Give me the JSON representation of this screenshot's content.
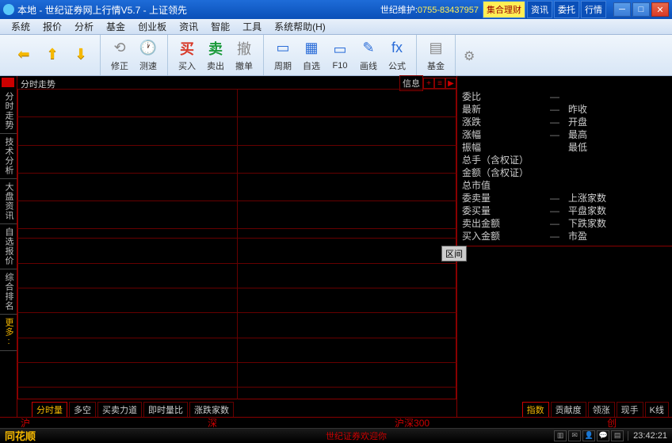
{
  "title": "本地 - 世纪证券网上行情V5.7 - 上证领先",
  "service": {
    "label": "世纪维护:",
    "phone": "0755-83437957"
  },
  "titletabs": [
    "集合理财",
    "资讯",
    "委托",
    "行情"
  ],
  "menu": [
    "系统",
    "报价",
    "分析",
    "基金",
    "创业板",
    "资讯",
    "智能",
    "工具",
    "系统帮助(H)"
  ],
  "toolbar": {
    "g1": [
      {
        "k": "back",
        "lbl": "",
        "glyph": "⬅",
        "cls": "arrow-yellow"
      },
      {
        "k": "up",
        "lbl": "",
        "glyph": "⬆",
        "cls": "arrow-yellow"
      },
      {
        "k": "down",
        "lbl": "",
        "glyph": "⬇",
        "cls": "arrow-yellow"
      }
    ],
    "g2": [
      {
        "k": "correct",
        "lbl": "修正",
        "glyph": "⟲",
        "cls": "icon-gray"
      },
      {
        "k": "speed",
        "lbl": "测速",
        "glyph": "🕐",
        "cls": "icon-gray"
      }
    ],
    "g3": [
      {
        "k": "buy",
        "lbl": "买入",
        "glyph": "买",
        "cls": "icon-red"
      },
      {
        "k": "sell",
        "lbl": "卖出",
        "glyph": "卖",
        "cls": "icon-green"
      },
      {
        "k": "cancel",
        "lbl": "撤单",
        "glyph": "撤",
        "cls": "icon-gray"
      }
    ],
    "g4": [
      {
        "k": "period",
        "lbl": "周期",
        "glyph": "▭",
        "cls": "icon-blue"
      },
      {
        "k": "self",
        "lbl": "自选",
        "glyph": "▦",
        "cls": "icon-blue"
      },
      {
        "k": "f10",
        "lbl": "F10",
        "glyph": "▭",
        "cls": "icon-blue"
      },
      {
        "k": "draw",
        "lbl": "画线",
        "glyph": "✎",
        "cls": "icon-blue"
      },
      {
        "k": "formula",
        "lbl": "公式",
        "glyph": "fx",
        "cls": "icon-blue"
      }
    ],
    "g5": [
      {
        "k": "fund",
        "lbl": "基金",
        "glyph": "▤",
        "cls": "icon-gray"
      }
    ]
  },
  "leftnav": [
    "分时走势",
    "技术分析",
    "大盘资讯",
    "自选报价",
    "综合排名"
  ],
  "leftnav_more": "更多:",
  "chart": {
    "title": "分时走势",
    "info_label": "信息",
    "hlines_pct": [
      0,
      9,
      18,
      27,
      36,
      45,
      48,
      56,
      64,
      72,
      80,
      88,
      96
    ],
    "vline_pct": 50,
    "border_color": "#800000",
    "line_color": "#660000",
    "bg_color": "#000000"
  },
  "chart_tabs": [
    "分时量",
    "多空",
    "买卖力道",
    "即时量比",
    "涨跌家数"
  ],
  "quotes": [
    {
      "l": "委比",
      "v": "—",
      "r": ""
    },
    {
      "l": "最新",
      "v": "—",
      "r": "昨收"
    },
    {
      "l": "涨跌",
      "v": "—",
      "r": "开盘"
    },
    {
      "l": "涨幅",
      "v": "—",
      "r": "最高"
    },
    {
      "l": "振幅",
      "v": "",
      "r": "最低"
    },
    {
      "l": "总手（含权证）",
      "v": "",
      "r": ""
    },
    {
      "l": "金额（含权证）",
      "v": "",
      "r": ""
    },
    {
      "l": "总市值",
      "v": "",
      "r": ""
    },
    {
      "l": "委卖量",
      "v": "—",
      "r": "上涨家数"
    },
    {
      "l": "委买量",
      "v": "—",
      "r": "平盘家数"
    },
    {
      "l": "卖出金额",
      "v": "—",
      "r": "下跌家数"
    },
    {
      "l": "买入金额",
      "v": "—",
      "r": "市盈"
    }
  ],
  "interval_label": "区间",
  "right_tabs": [
    "指数",
    "贡献度",
    "领涨",
    "现手",
    "K线"
  ],
  "markets": [
    "沪",
    "深",
    "沪深300",
    "创"
  ],
  "status": {
    "brand": "同花顺",
    "welcome": "世纪证券欢迎你",
    "clock": "23:42:21"
  }
}
